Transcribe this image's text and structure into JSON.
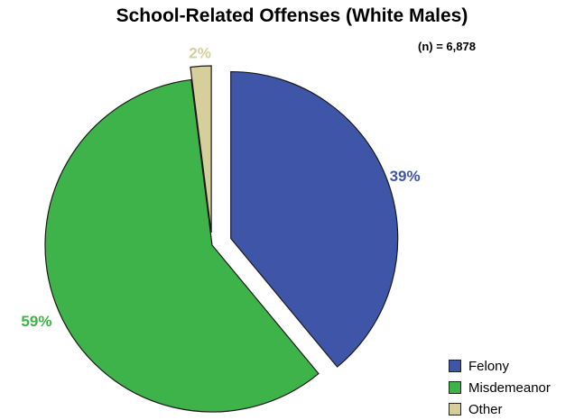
{
  "chart_data": {
    "type": "pie",
    "title": "School-Related Offenses (White Males)",
    "annotation": "(n) = 6,878",
    "slices": [
      {
        "label": "Felony",
        "value": 39,
        "display": "39%",
        "color": "#3f56a8"
      },
      {
        "label": "Misdemeanor",
        "value": 59,
        "display": "59%",
        "color": "#3db34a"
      },
      {
        "label": "Other",
        "value": 2,
        "display": "2%",
        "color": "#d6cf9c"
      }
    ],
    "exploded": true,
    "legend_position": "bottom-right"
  }
}
